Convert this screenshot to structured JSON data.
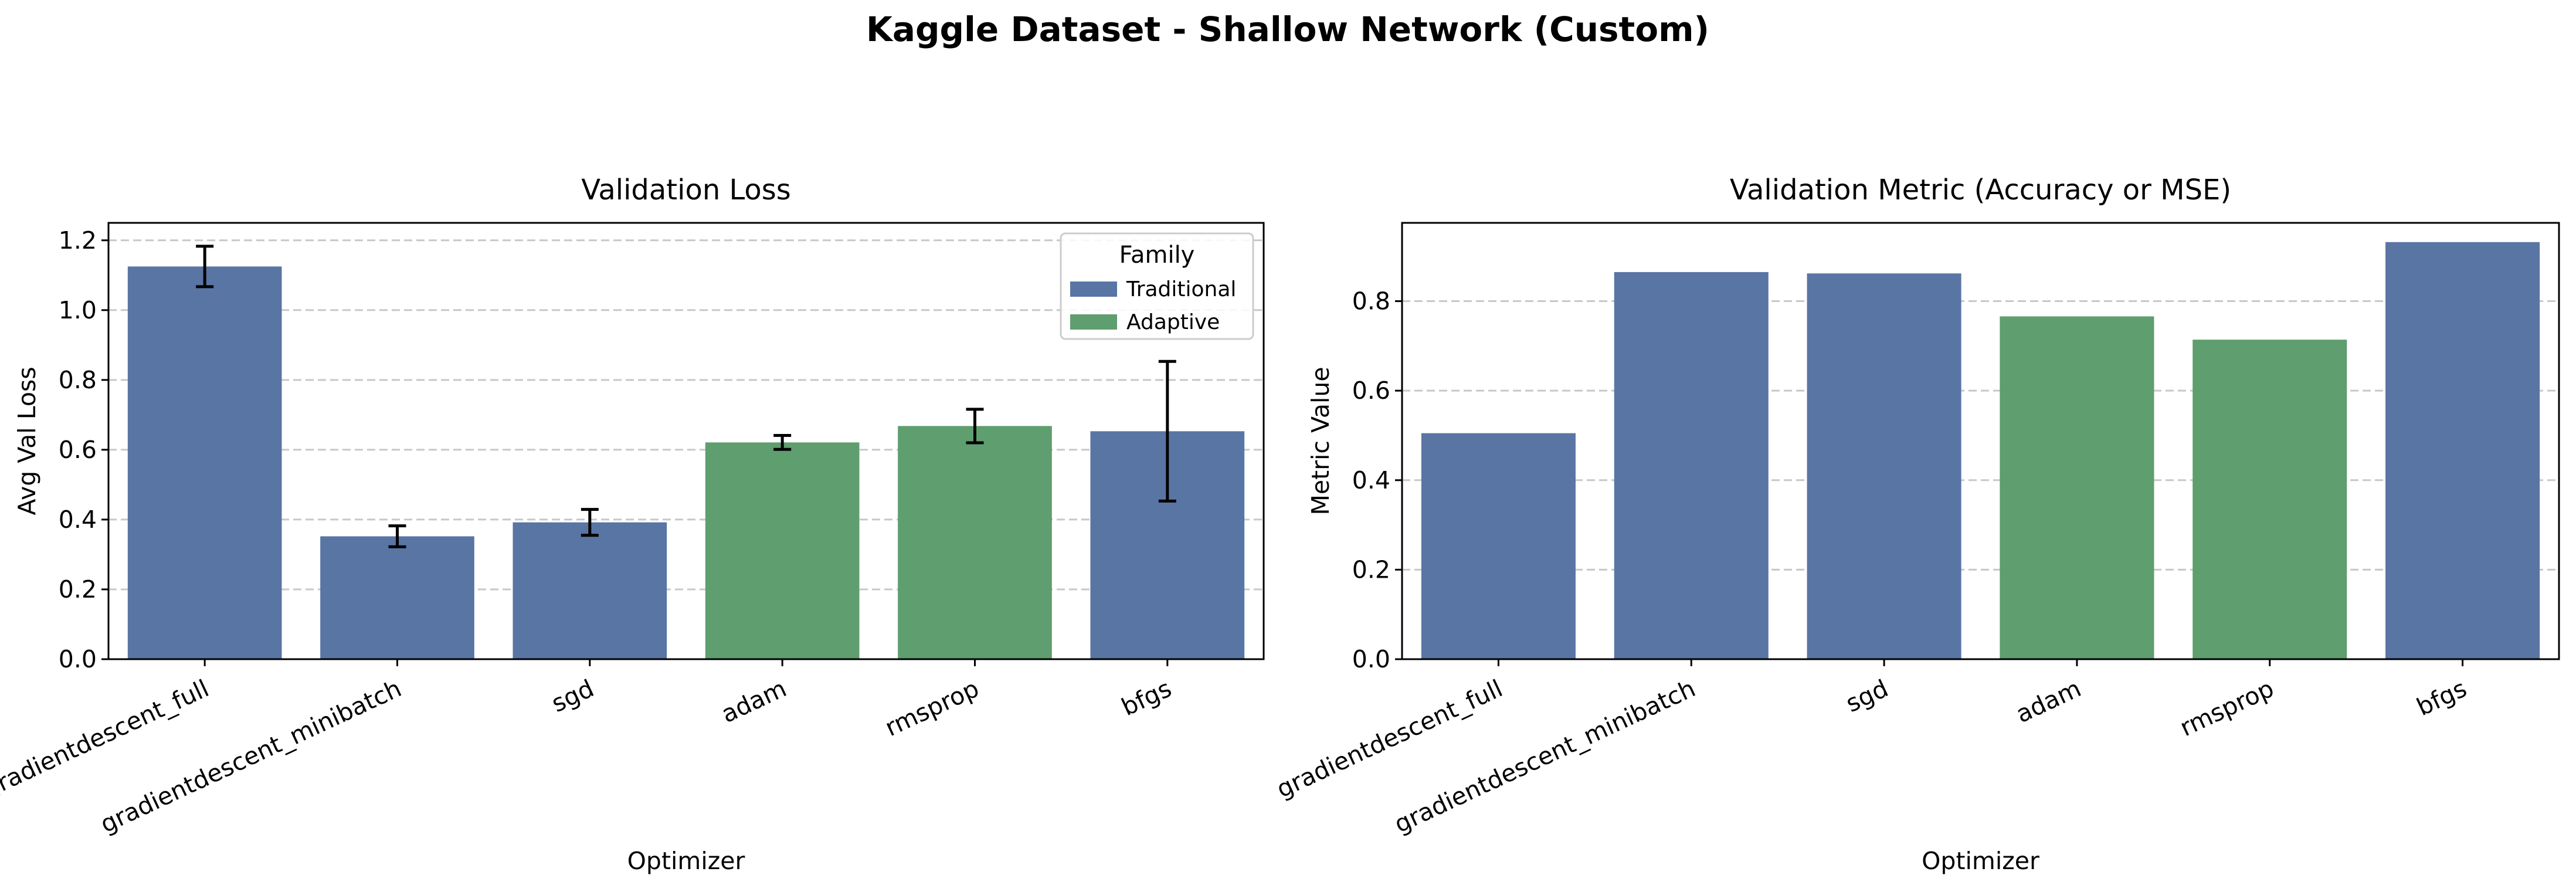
{
  "suptitle": "Kaggle Dataset - Shallow Network (Custom)",
  "colors": {
    "Traditional": "#5975a4",
    "Adaptive": "#5f9e6e",
    "grid": "#c8c8c8",
    "errorbar": "#000000"
  },
  "chart_data": [
    {
      "type": "bar",
      "title": "Validation Loss",
      "xlabel": "Optimizer",
      "ylabel": "Avg Val Loss",
      "ylim": [
        0,
        1.25
      ],
      "yticks": [
        "0.0",
        "0.2",
        "0.4",
        "0.6",
        "0.8",
        "1.0",
        "1.2"
      ],
      "grid": "y dashed",
      "categories": [
        "gradientdescent_full",
        "gradientdescent_minibatch",
        "sgd",
        "adam",
        "rmsprop",
        "bfgs"
      ],
      "values": [
        1.125,
        0.352,
        0.392,
        0.621,
        0.668,
        0.653
      ],
      "errors": [
        0.058,
        0.03,
        0.037,
        0.02,
        0.048,
        0.2
      ],
      "family": [
        "Traditional",
        "Traditional",
        "Traditional",
        "Adaptive",
        "Adaptive",
        "Traditional"
      ],
      "legend": {
        "title": "Family",
        "entries": [
          "Traditional",
          "Adaptive"
        ],
        "placement": "top-right"
      }
    },
    {
      "type": "bar",
      "title": "Validation Metric (Accuracy or MSE)",
      "xlabel": "Optimizer",
      "ylabel": "Metric Value",
      "ylim": [
        0,
        0.975
      ],
      "yticks": [
        "0.0",
        "0.2",
        "0.4",
        "0.6",
        "0.8"
      ],
      "grid": "y dashed",
      "categories": [
        "gradientdescent_full",
        "gradientdescent_minibatch",
        "sgd",
        "adam",
        "rmsprop",
        "bfgs"
      ],
      "values": [
        0.505,
        0.865,
        0.862,
        0.766,
        0.714,
        0.932
      ],
      "family": [
        "Traditional",
        "Traditional",
        "Traditional",
        "Adaptive",
        "Adaptive",
        "Traditional"
      ]
    }
  ]
}
